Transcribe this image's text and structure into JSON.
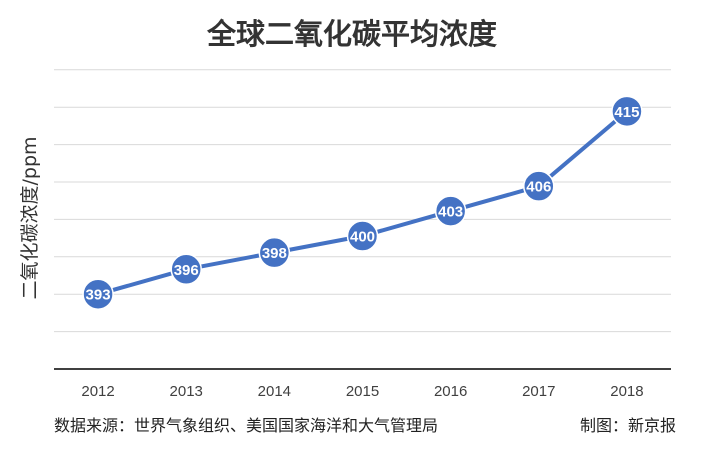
{
  "colors": {
    "line": "#4472C4",
    "grid": "#D9D9D9",
    "axis": "#404040"
  },
  "chart_data": {
    "type": "line",
    "title": "全球二氧化碳平均浓度",
    "xlabel": "",
    "ylabel": "二氧化碳浓度/ppm",
    "categories": [
      "2012",
      "2013",
      "2014",
      "2015",
      "2016",
      "2017",
      "2018"
    ],
    "series": [
      {
        "values": [
          393,
          396,
          398,
          400,
          403,
          406,
          415
        ]
      }
    ],
    "ylim": [
      384,
      420
    ],
    "y_gridlines": true,
    "y_tick_labels_shown": false,
    "data_labels": true,
    "legend": "none"
  },
  "footer": {
    "source": "数据来源：世界气象组织、美国国家海洋和大气管理局",
    "credit": "制图：新京报"
  }
}
